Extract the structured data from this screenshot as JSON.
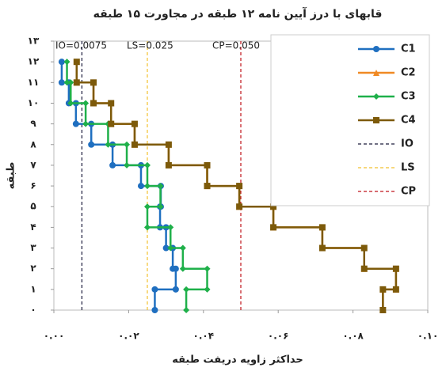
{
  "chart_data": {
    "type": "step",
    "title": "قابهای با درز آیین نامه ۱۲ طبقه در مجاورت ۱۵ طبقه",
    "xlabel": "حداکثر زاویه دریفت طبقه",
    "ylabel": "طبقه",
    "stories": [
      1,
      2,
      3,
      4,
      5,
      6,
      7,
      8,
      9,
      10,
      11,
      12
    ],
    "series": [
      {
        "name": "C1",
        "color": "#1f6fc0",
        "marker": "circle",
        "values": [
          0.027,
          0.0326,
          0.0318,
          0.03,
          0.0284,
          0.0286,
          0.0233,
          0.0157,
          0.01,
          0.0059,
          0.004,
          0.0021
        ]
      },
      {
        "name": "C2",
        "color": "#f08a24",
        "marker": "triangle",
        "values": [
          0.088,
          0.0915,
          0.083,
          0.0718,
          0.0587,
          0.0496,
          0.041,
          0.0307,
          0.0216,
          0.0153,
          0.0106,
          0.0061
        ]
      },
      {
        "name": "C3",
        "color": "#1fb04a",
        "marker": "diamond",
        "values": [
          0.0354,
          0.041,
          0.0345,
          0.0312,
          0.025,
          0.0285,
          0.025,
          0.0195,
          0.0145,
          0.0085,
          0.0045,
          0.0035
        ]
      },
      {
        "name": "C4",
        "color": "#7d5a0a",
        "marker": "square",
        "values": [
          0.088,
          0.0915,
          0.083,
          0.0718,
          0.0587,
          0.0496,
          0.041,
          0.0307,
          0.0216,
          0.0153,
          0.0106,
          0.0061
        ]
      }
    ],
    "reference_lines": [
      {
        "name": "IO",
        "value": 0.0075,
        "color": "#1a1a3a"
      },
      {
        "name": "LS",
        "value": 0.025,
        "color": "#f2c12e"
      },
      {
        "name": "CP",
        "value": 0.05,
        "color": "#c0141c"
      }
    ],
    "annotations": [
      "IO=0.0075",
      "LS=0.025",
      "CP=0.050"
    ],
    "xlim": [
      0,
      0.1
    ],
    "xticks": [
      {
        "value": 0,
        "label": "۰.۰۰"
      },
      {
        "value": 0.02,
        "label": "۰.۰۲"
      },
      {
        "value": 0.04,
        "label": "۰.۰۴"
      },
      {
        "value": 0.06,
        "label": "۰.۰۶"
      },
      {
        "value": 0.08,
        "label": "۰.۰۸"
      },
      {
        "value": 0.1,
        "label": "۰.۱۰"
      }
    ],
    "ylim": [
      0,
      13
    ],
    "yticks": [
      {
        "value": 0,
        "label": "۰"
      },
      {
        "value": 1,
        "label": "۱"
      },
      {
        "value": 2,
        "label": "۲"
      },
      {
        "value": 3,
        "label": "۳"
      },
      {
        "value": 4,
        "label": "۴"
      },
      {
        "value": 5,
        "label": "۵"
      },
      {
        "value": 6,
        "label": "۶"
      },
      {
        "value": 7,
        "label": "۷"
      },
      {
        "value": 8,
        "label": "۸"
      },
      {
        "value": 9,
        "label": "۹"
      },
      {
        "value": 10,
        "label": "۱۰"
      },
      {
        "value": 11,
        "label": "۱۱"
      },
      {
        "value": 12,
        "label": "۱۲"
      },
      {
        "value": 13,
        "label": "۱۳"
      }
    ]
  }
}
